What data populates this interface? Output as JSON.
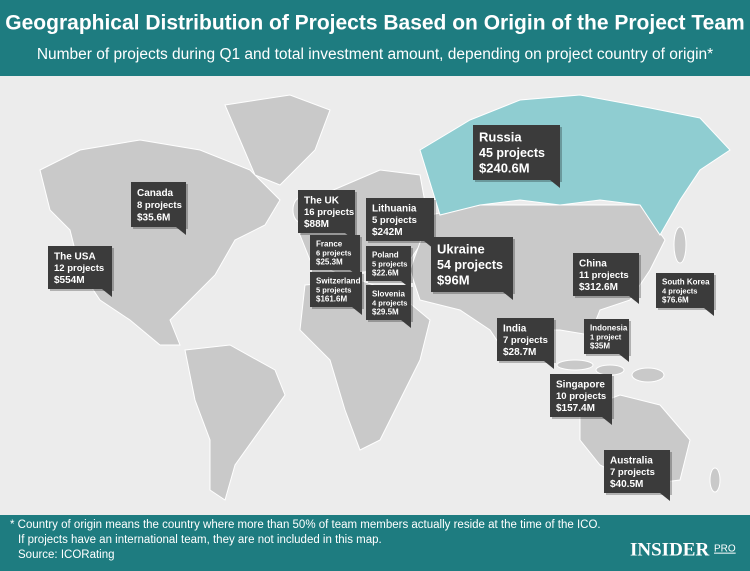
{
  "header": {
    "title": "Geographical Distribution of Projects Based on Origin of the Project Team",
    "subtitle": "Number of projects during Q1 and total investment amount, depending on project country of origin*"
  },
  "callouts": [
    {
      "country": "Russia",
      "projects": "45 projects",
      "amount": "$240.6M"
    },
    {
      "country": "Canada",
      "projects": "8 projects",
      "amount": "$35.6M"
    },
    {
      "country": "The UK",
      "projects": "16 projects",
      "amount": "$88M"
    },
    {
      "country": "Lithuania",
      "projects": "5 projects",
      "amount": "$242M"
    },
    {
      "country": "The USA",
      "projects": "12 projects",
      "amount": "$554M"
    },
    {
      "country": "France",
      "projects": "6 projects",
      "amount": "$25.3M"
    },
    {
      "country": "Poland",
      "projects": "5 projects",
      "amount": "$22.6M"
    },
    {
      "country": "Ukraine",
      "projects": "54 projects",
      "amount": "$96M"
    },
    {
      "country": "Switzerland",
      "projects": "5 projects",
      "amount": "$161.6M"
    },
    {
      "country": "Slovenia",
      "projects": "4 projects",
      "amount": "$29.5M"
    },
    {
      "country": "China",
      "projects": "11 projects",
      "amount": "$312.6M"
    },
    {
      "country": "South Korea",
      "projects": "4 projects",
      "amount": "$76.6M"
    },
    {
      "country": "India",
      "projects": "7 projects",
      "amount": "$28.7M"
    },
    {
      "country": "Indonesia",
      "projects": "1 project",
      "amount": "$35M"
    },
    {
      "country": "Singapore",
      "projects": "10 projects",
      "amount": "$157.4M"
    },
    {
      "country": "Australia",
      "projects": "7 projects",
      "amount": "$40.5M"
    }
  ],
  "footer": {
    "note": "* Country of origin means the country where more than 50% of team members actually reside at the time of the ICO.",
    "note2": "If projects have an international team, they are not included in this map.",
    "source": "Source: ICORating",
    "logo": "INSIDER",
    "logo_suffix": "PRO"
  }
}
